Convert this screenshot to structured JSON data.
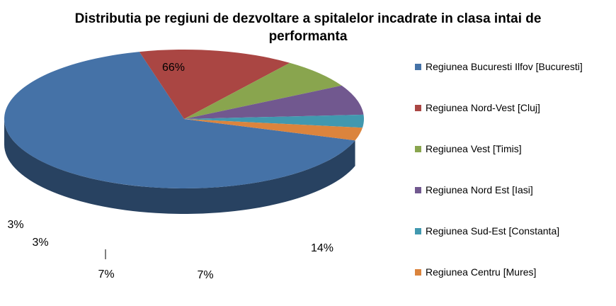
{
  "chart_data": {
    "type": "pie",
    "title_lines": [
      "Distributia pe regiuni de dezvoltare a spitalelor incadrate in clasa intai de",
      "performanta"
    ],
    "categories": [
      "Regiunea Bucuresti Ilfov [Bucuresti]",
      "Regiunea Nord-Vest  [Cluj]",
      "Regiunea Vest  [Timis]",
      "Regiunea Nord Est  [Iasi]",
      "Regiunea Sud-Est  [Constanta]",
      "Regiunea Centru  [Mures]"
    ],
    "values": [
      66,
      14,
      7,
      7,
      3,
      3
    ],
    "labels": [
      "66%",
      "14%",
      "7%",
      "7%",
      "3%",
      "3%"
    ],
    "colors": [
      "#4572A7",
      "#AA4643",
      "#89A54E",
      "#71588F",
      "#4198AF",
      "#DB843D"
    ],
    "style": "3d",
    "legend_position": "right"
  }
}
